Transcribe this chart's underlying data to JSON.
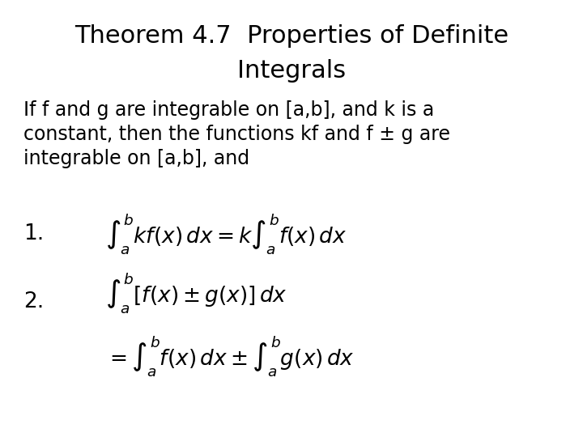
{
  "title_line1": "Theorem 4.7  Properties of Definite",
  "title_line2": "Integrals",
  "body_line1": "If f and g are integrable on [a,b], and k is a",
  "body_line2": "constant, then the functions kf and f ± g are",
  "body_line3": "integrable on [a,b], and",
  "label1": "1.",
  "label2": "2.",
  "bg_color": "#ffffff",
  "text_color": "#000000",
  "title_fontsize": 22,
  "body_fontsize": 17,
  "label_fontsize": 19,
  "formula_fontsize": 19
}
